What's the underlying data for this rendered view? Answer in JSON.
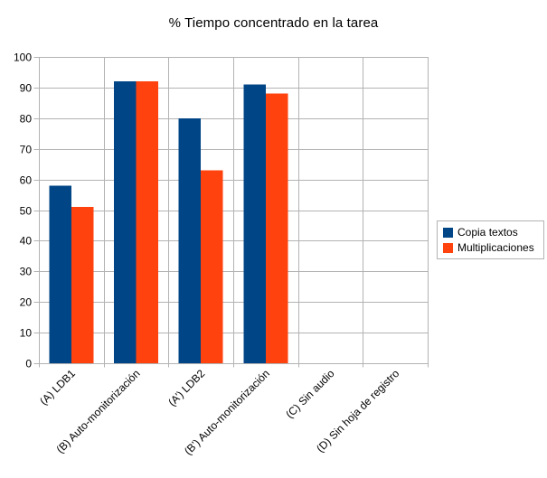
{
  "chart": {
    "title": "% Tiempo concentrado en la tarea",
    "colors": {
      "series1": "#004586",
      "series2": "#FF420E",
      "grid": "#B3B3B3",
      "axis": "#B3B3B3",
      "text": "#000000",
      "background": "#FFFFFF"
    },
    "legend": {
      "position": "right",
      "items": [
        {
          "label": "Copia textos",
          "color": "#004586"
        },
        {
          "label": "Multiplicaciones",
          "color": "#FF420E"
        }
      ]
    }
  },
  "chart_data": {
    "type": "bar",
    "title": "% Tiempo concentrado en la tarea",
    "categories": [
      "(A) LDB1",
      "(B) Auto-monitorización",
      "(A’) LDB2",
      "(B’) Auto-monitorización",
      "(C) Sin audio",
      "(D) Sin hoja de registro"
    ],
    "series": [
      {
        "name": "Copia textos",
        "color": "#004586",
        "values": [
          58,
          92,
          80,
          91,
          0,
          0
        ]
      },
      {
        "name": "Multiplicaciones",
        "color": "#FF420E",
        "values": [
          51,
          92,
          63,
          88,
          0,
          0
        ]
      }
    ],
    "xlabel": "",
    "ylabel": "",
    "ylim": [
      0,
      100
    ],
    "ytick_step": 10,
    "yticks": [
      0,
      10,
      20,
      30,
      40,
      50,
      60,
      70,
      80,
      90,
      100
    ],
    "grid": true,
    "legend_position": "right"
  }
}
